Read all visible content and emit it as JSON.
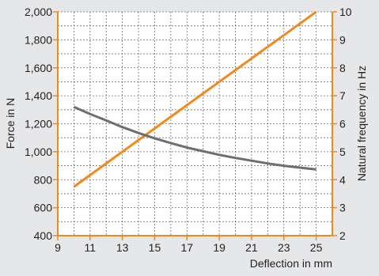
{
  "chart_data": {
    "type": "line",
    "xlabel": "Deflection in mm",
    "ylabel_left": "Force in N",
    "ylabel_right": "Natural frequency in Hz",
    "x_ticks": [
      9,
      11,
      13,
      15,
      17,
      19,
      21,
      23,
      25
    ],
    "xlim": [
      9,
      26
    ],
    "y_left_ticks": [
      400,
      600,
      800,
      1000,
      1200,
      1400,
      1600,
      1800,
      2000
    ],
    "y_left_tick_labels": [
      "400",
      "600",
      "800",
      "1,000",
      "1,200",
      "1,400",
      "1,600",
      "1,800",
      "2,000"
    ],
    "ylim_left": [
      400,
      2000
    ],
    "y_right_ticks": [
      2,
      3,
      4,
      5,
      6,
      7,
      8,
      9,
      10
    ],
    "ylim_right": [
      2,
      10
    ],
    "grid": true,
    "series": [
      {
        "axis": "left",
        "color": "#f08a1c",
        "x": [
          10,
          25
        ],
        "y": [
          750,
          2000
        ]
      },
      {
        "axis": "right",
        "color": "#6d6e71",
        "x": [
          10,
          11,
          12,
          13,
          14,
          15,
          16,
          17,
          18,
          19,
          20,
          21,
          22,
          23,
          24,
          25
        ],
        "y": [
          6.6,
          6.35,
          6.12,
          5.88,
          5.67,
          5.48,
          5.31,
          5.15,
          5.02,
          4.89,
          4.78,
          4.68,
          4.58,
          4.5,
          4.43,
          4.37
        ]
      }
    ]
  }
}
